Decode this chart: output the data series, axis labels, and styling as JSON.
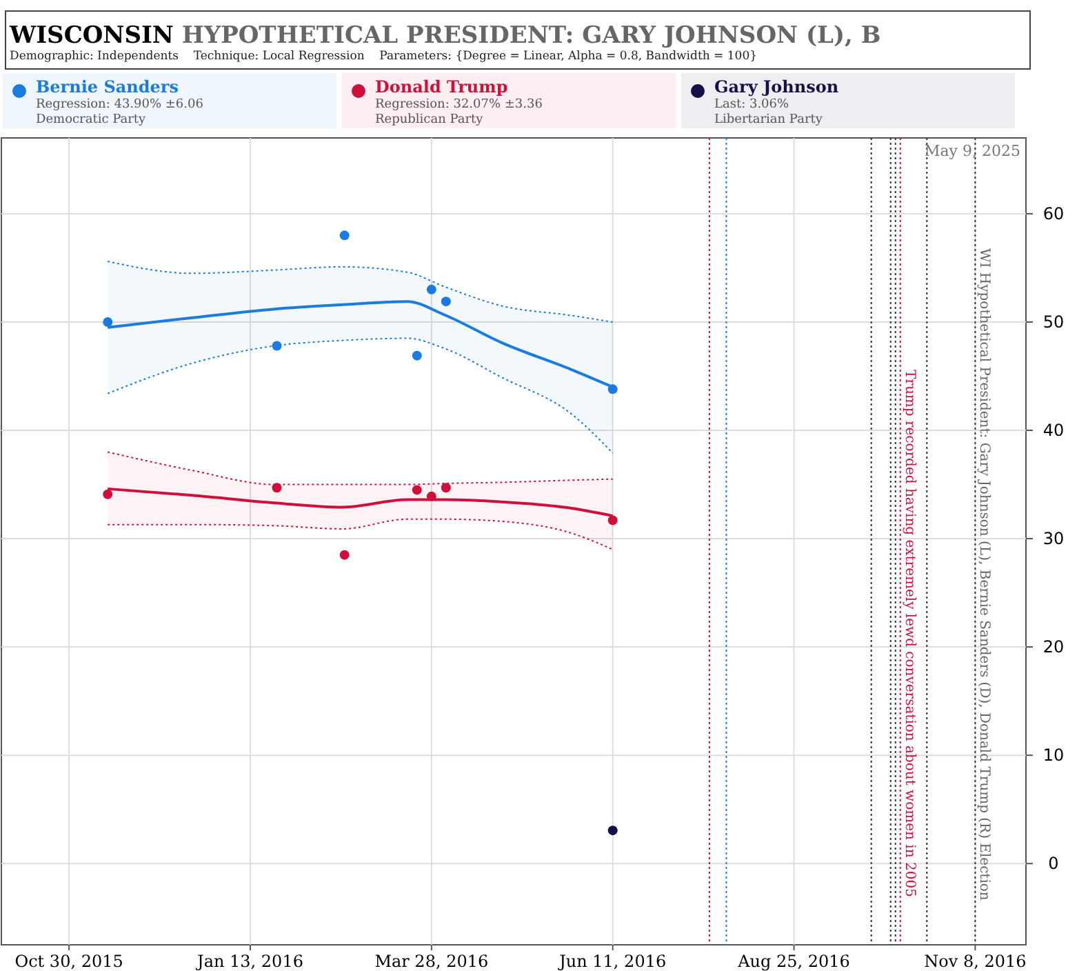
{
  "chart_data": {
    "type": "scatter",
    "title": "WISCONSIN HYPOTHETICAL PRESIDENT: GARY JOHNSON (L), B",
    "subtitle": "Demographic: Independents    Technique: Local Regression    Parameters: {Degree = Linear, Alpha = 0.8, Bandwidth = 100}",
    "xlim": [
      "2015-10-02",
      "2016-11-29"
    ],
    "ylim": [
      -7.5,
      67
    ],
    "xticks": [
      {
        "value": "2015-10-30",
        "label": "Oct 30, 2015"
      },
      {
        "value": "2016-01-13",
        "label": "Jan 13, 2016"
      },
      {
        "value": "2016-03-28",
        "label": "Mar 28, 2016"
      },
      {
        "value": "2016-06-11",
        "label": "Jun 11, 2016"
      },
      {
        "value": "2016-08-25",
        "label": "Aug 25, 2016"
      },
      {
        "value": "2016-11-08",
        "label": "Nov 8, 2016"
      }
    ],
    "yticks": [
      0,
      10,
      20,
      30,
      40,
      50,
      60
    ],
    "grid": true,
    "legend": "top",
    "marker": "circle",
    "series": [
      {
        "name": "Bernie Sanders",
        "color": "#1a7be0",
        "x": [
          "2015-11-15",
          "2016-01-24",
          "2016-02-21",
          "2016-03-22",
          "2016-03-28",
          "2016-04-03",
          "2016-06-11"
        ],
        "values": [
          50,
          47.8,
          58,
          46.9,
          53,
          51.9,
          43.8
        ]
      },
      {
        "type": "line",
        "color": "#1a7be0",
        "marker": "none",
        "x": [
          "2015-11-15",
          "2015-12-20",
          "2016-01-23",
          "2016-02-20",
          "2016-03-18",
          "2016-04-02",
          "2016-04-26",
          "2016-05-25",
          "2016-06-11"
        ],
        "values": [
          49.5,
          50.4,
          51.2,
          51.6,
          51.9,
          50.7,
          48.1,
          45.6,
          44.0
        ],
        "lower": [
          43.4,
          46.2,
          47.8,
          48.3,
          48.5,
          47.6,
          44.9,
          41.5,
          37.9
        ],
        "upper": [
          55.6,
          54.5,
          54.8,
          55.1,
          54.6,
          53.3,
          51.5,
          50.6,
          50.0
        ]
      },
      {
        "type": "line",
        "color": "#1a7be0",
        "marker": "none",
        "line_style": "dotted",
        "x": [
          "2015-11-15",
          "2015-12-20",
          "2016-01-23",
          "2016-02-20",
          "2016-03-18",
          "2016-04-02",
          "2016-04-26",
          "2016-05-25",
          "2016-06-11"
        ],
        "values": [
          43.4,
          46.2,
          47.8,
          48.3,
          48.5,
          47.6,
          44.9,
          41.5,
          37.9
        ]
      },
      {
        "type": "line",
        "color": "#1a7be0",
        "marker": "none",
        "line_style": "dotted",
        "x": [
          "2015-11-15",
          "2015-12-20",
          "2016-01-23",
          "2016-02-20",
          "2016-03-18",
          "2016-04-02",
          "2016-04-26",
          "2016-05-25",
          "2016-06-11"
        ],
        "values": [
          55.6,
          54.5,
          54.8,
          55.1,
          54.6,
          53.3,
          51.5,
          50.6,
          50.0
        ]
      },
      {
        "name": "Donald Trump",
        "color": "#d0103a",
        "x": [
          "2015-11-15",
          "2016-01-24",
          "2016-02-21",
          "2016-03-22",
          "2016-03-28",
          "2016-04-03",
          "2016-06-11"
        ],
        "values": [
          34.1,
          34.7,
          28.5,
          34.5,
          33.9,
          34.7,
          31.7
        ]
      },
      {
        "type": "line",
        "color": "#d0103a",
        "marker": "none",
        "x": [
          "2015-11-15",
          "2015-12-20",
          "2016-01-23",
          "2016-02-20",
          "2016-03-18",
          "2016-04-02",
          "2016-04-26",
          "2016-05-25",
          "2016-06-11"
        ],
        "values": [
          34.6,
          34.0,
          33.3,
          32.9,
          33.6,
          33.6,
          33.4,
          32.8,
          32.1
        ],
        "lower": [
          31.3,
          31.3,
          31.2,
          30.9,
          31.8,
          31.8,
          31.6,
          30.5,
          29.0
        ],
        "upper": [
          38.0,
          36.3,
          35.0,
          35.0,
          35.0,
          35.1,
          35.2,
          35.4,
          35.5
        ]
      },
      {
        "type": "line",
        "color": "#d0103a",
        "marker": "none",
        "line_style": "dotted",
        "x": [
          "2015-11-15",
          "2015-12-20",
          "2016-01-23",
          "2016-02-20",
          "2016-03-18",
          "2016-04-02",
          "2016-04-26",
          "2016-05-25",
          "2016-06-11"
        ],
        "values": [
          31.3,
          31.3,
          31.2,
          30.9,
          31.8,
          31.8,
          31.6,
          30.5,
          29.0
        ]
      },
      {
        "type": "line",
        "color": "#d0103a",
        "marker": "none",
        "line_style": "dotted",
        "x": [
          "2015-11-15",
          "2015-12-20",
          "2016-01-23",
          "2016-02-20",
          "2016-03-18",
          "2016-04-02",
          "2016-04-26",
          "2016-05-25",
          "2016-06-11"
        ],
        "values": [
          38.0,
          36.3,
          35.0,
          35.0,
          35.0,
          35.1,
          35.2,
          35.4,
          35.5
        ]
      },
      {
        "name": "Gary Johnson",
        "color": "#14104a",
        "x": [
          "2016-06-11"
        ],
        "values": [
          3.06
        ]
      }
    ],
    "ref_lines": [
      {
        "axis": "x",
        "value": "2016-07-21",
        "color": "#d0103a",
        "line_style": "dotted"
      },
      {
        "axis": "x",
        "value": "2016-07-28",
        "color": "#1a7be0",
        "line_style": "dotted"
      },
      {
        "axis": "x",
        "value": "2016-09-26",
        "color": "#333333",
        "line_style": "dotted"
      },
      {
        "axis": "x",
        "value": "2016-10-04",
        "color": "#333333",
        "line_style": "dotted"
      },
      {
        "axis": "x",
        "value": "2016-10-06",
        "color": "#333333",
        "line_style": "dotted"
      },
      {
        "axis": "x",
        "value": "2016-10-08",
        "color": "#d0103a",
        "line_style": "dotted",
        "label": "Trump recorded having extremely lewd conversation about women in 2005"
      },
      {
        "axis": "x",
        "value": "2016-10-19",
        "color": "#333333",
        "line_style": "dotted"
      },
      {
        "axis": "x",
        "value": "2016-11-08",
        "color": "#333333",
        "line_style": "dotted",
        "label": "WI Hypothetical President: Gary Johnson (L), Bernie Sanders (D), Donald Trump (R) Election"
      }
    ],
    "annotations": [
      "Regression: 43.90% ±6.06",
      "Democratic Party",
      "Regression: 32.07% ±3.36",
      "Republican Party",
      "Last: 3.06%",
      "Libertarian Party",
      "May 9, 2025"
    ]
  }
}
